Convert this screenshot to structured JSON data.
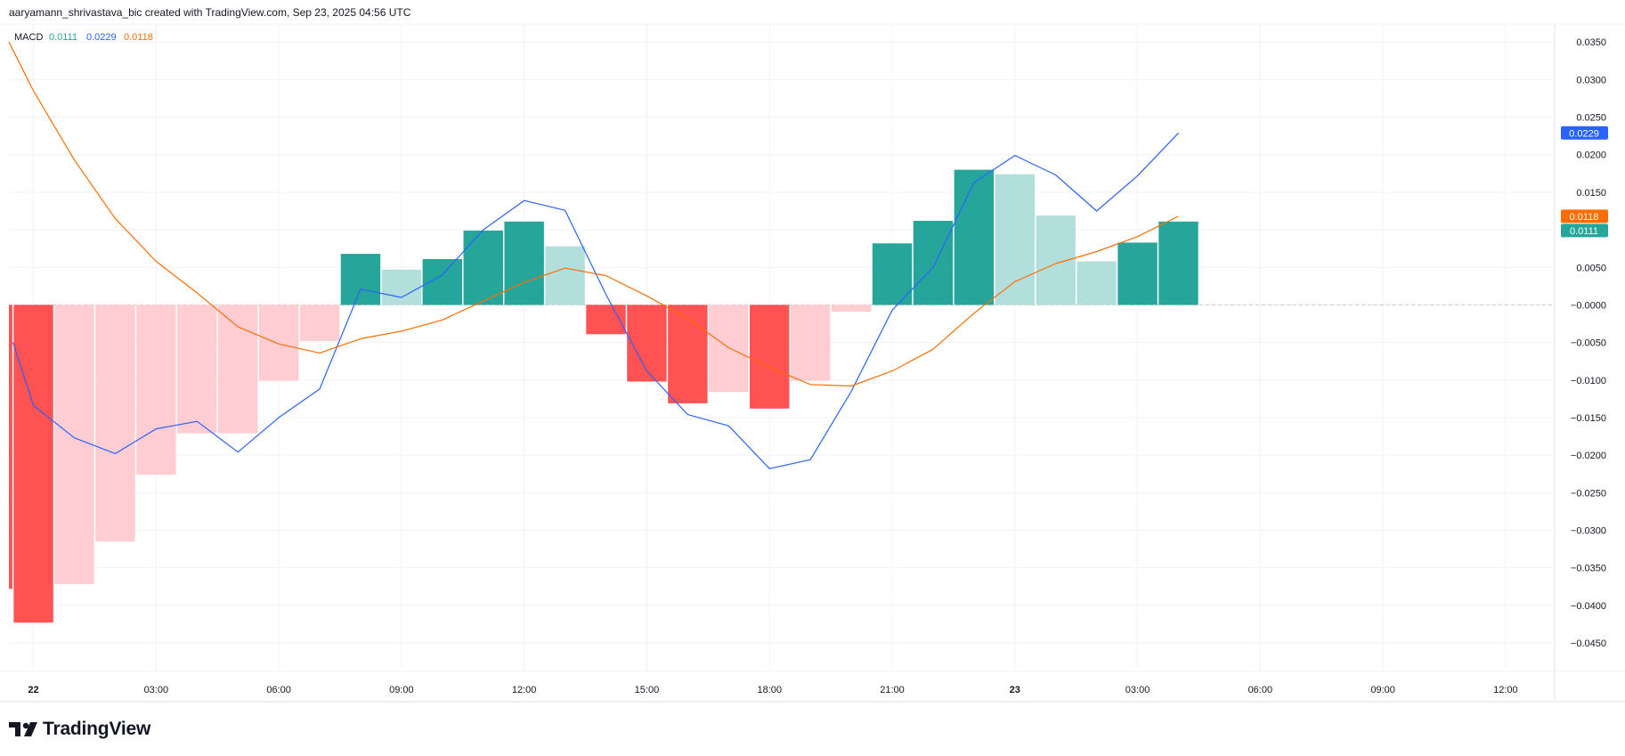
{
  "header": {
    "credit": "aaryamann_shrivastava_bic created with TradingView.com, Sep 23, 2025 04:56 UTC"
  },
  "legend": {
    "name": "MACD",
    "histogram_value": "0.0111",
    "macd_value": "0.0229",
    "signal_value": "0.0118"
  },
  "branding": {
    "logo_text": "TradingView",
    "logo_icon": "tradingview-logo-icon"
  },
  "colors": {
    "hist_up_strong": "#26a69a",
    "hist_up_weak": "#b2dfdb",
    "hist_down_strong": "#ff5252",
    "hist_down_weak": "#ffcdd2",
    "macd_line": "#2962ff",
    "signal_line": "#ff6d00",
    "grid": "#f0f3fa",
    "axis_text": "#131722",
    "zero_line": "#c8ccd6"
  },
  "chart_data": {
    "type": "bar",
    "title": "MACD",
    "y_axis": {
      "ticks": [
        "0.0350",
        "0.0300",
        "0.0250",
        "0.0200",
        "0.0150",
        "0.0100",
        "0.0050",
        "−0.0000",
        "−0.0050",
        "−0.0100",
        "−0.0150",
        "−0.0200",
        "−0.0250",
        "−0.0300",
        "−0.0350",
        "−0.0400",
        "−0.0450"
      ],
      "tick_values": [
        0.035,
        0.03,
        0.025,
        0.02,
        0.015,
        0.01,
        0.005,
        0,
        -0.005,
        -0.01,
        -0.015,
        -0.02,
        -0.025,
        -0.03,
        -0.035,
        -0.04,
        -0.045
      ],
      "range": [
        -0.0488,
        0.0374
      ],
      "position": "right"
    },
    "x_axis": {
      "ticks": [
        "22",
        "03:00",
        "06:00",
        "09:00",
        "12:00",
        "15:00",
        "18:00",
        "21:00",
        "23",
        "03:00",
        "06:00",
        "09:00",
        "12:00"
      ],
      "tick_hours": [
        0,
        3,
        6,
        9,
        12,
        15,
        18,
        21,
        24,
        27,
        30,
        33,
        36
      ],
      "range_hours": [
        -0.6,
        37.2
      ]
    },
    "grid": true,
    "histogram": {
      "name": "Histogram",
      "x_hours": [
        -1,
        0,
        1,
        2,
        3,
        4,
        5,
        6,
        7,
        8,
        9,
        10,
        11,
        12,
        13,
        14,
        15,
        16,
        17,
        18,
        19,
        20,
        21,
        22,
        23,
        24,
        25,
        26,
        27,
        28
      ],
      "values": [
        -0.0378,
        -0.0423,
        -0.0372,
        -0.0315,
        -0.0226,
        -0.0171,
        -0.0171,
        -0.0101,
        -0.0048,
        0.0068,
        0.0047,
        0.0061,
        0.0099,
        0.0111,
        0.0078,
        -0.0039,
        -0.0102,
        -0.0131,
        -0.0116,
        -0.0138,
        -0.0101,
        -0.0009,
        0.0082,
        0.0112,
        0.018,
        0.0174,
        0.0119,
        0.0058,
        0.0083,
        0.0111
      ],
      "color_keys": [
        "hist_down_strong",
        "hist_down_strong",
        "hist_down_weak",
        "hist_down_weak",
        "hist_down_weak",
        "hist_down_weak",
        "hist_down_weak",
        "hist_down_weak",
        "hist_down_weak",
        "hist_up_strong",
        "hist_up_weak",
        "hist_up_strong",
        "hist_up_strong",
        "hist_up_strong",
        "hist_up_weak",
        "hist_down_strong",
        "hist_down_strong",
        "hist_down_strong",
        "hist_down_weak",
        "hist_down_strong",
        "hist_down_weak",
        "hist_down_weak",
        "hist_up_strong",
        "hist_up_strong",
        "hist_up_strong",
        "hist_up_weak",
        "hist_up_weak",
        "hist_up_weak",
        "hist_up_strong",
        "hist_up_strong"
      ]
    },
    "series": [
      {
        "name": "MACD",
        "color_key": "macd_line",
        "x_hours": [
          -0.5,
          0,
          1,
          2,
          3,
          4,
          5,
          6,
          7,
          8,
          9,
          10,
          11,
          12,
          13,
          14,
          15,
          16,
          17,
          18,
          19,
          20,
          21,
          22,
          23,
          24,
          25,
          26,
          27,
          28
        ],
        "values": [
          -0.005,
          -0.0134,
          -0.0177,
          -0.0198,
          -0.0165,
          -0.0155,
          -0.0196,
          -0.015,
          -0.0112,
          0.0021,
          0.001,
          0.004,
          0.01,
          0.0139,
          0.0126,
          0.0014,
          -0.0088,
          -0.0146,
          -0.0161,
          -0.0218,
          -0.0206,
          -0.0115,
          -0.0007,
          0.005,
          0.0163,
          0.0199,
          0.0173,
          0.0125,
          0.0172,
          0.0229
        ]
      },
      {
        "name": "Signal",
        "color_key": "signal_line",
        "x_hours": [
          -0.6,
          0,
          1,
          2,
          3,
          4,
          5,
          6,
          7,
          8,
          9,
          10,
          11,
          12,
          13,
          14,
          15,
          16,
          17,
          18,
          19,
          20,
          21,
          22,
          23,
          24,
          25,
          26,
          27,
          28
        ],
        "values": [
          0.035,
          0.0285,
          0.0193,
          0.0115,
          0.0058,
          0.0016,
          -0.0029,
          -0.0052,
          -0.0064,
          -0.0045,
          -0.0035,
          -0.002,
          0.0005,
          0.003,
          0.0049,
          0.0039,
          0.0012,
          -0.0018,
          -0.0057,
          -0.0083,
          -0.0106,
          -0.0108,
          -0.0088,
          -0.0059,
          -0.0011,
          0.0031,
          0.0055,
          0.0071,
          0.0091,
          0.0118
        ]
      }
    ],
    "price_labels": [
      {
        "text": "0.0229",
        "value": 0.0229,
        "color_key": "macd_line"
      },
      {
        "text": "0.0118",
        "value": 0.0118,
        "color_key": "signal_line"
      },
      {
        "text": "0.0111",
        "value": 0.0111,
        "color_key": "hist_up_strong"
      }
    ]
  }
}
